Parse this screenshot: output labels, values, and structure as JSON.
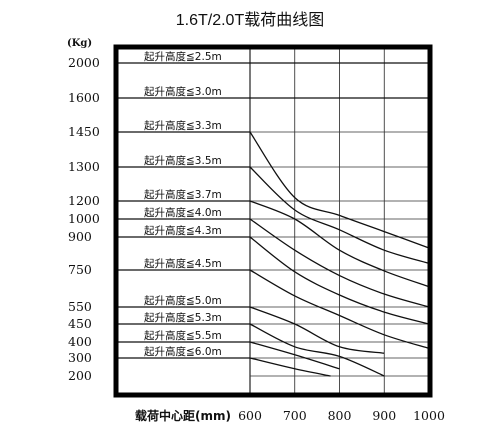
{
  "chart_data": {
    "type": "line",
    "title": "1.6T/2.0T载荷曲线图",
    "y_unit": "(Kg)",
    "xlabel": "载荷中心距(mm)",
    "x_ticks": [
      "600",
      "700",
      "800",
      "900",
      "1000"
    ],
    "y_ticks": [
      "2000",
      "1600",
      "1450",
      "1300",
      "1200",
      "1000",
      "900",
      "750",
      "550",
      "450",
      "400",
      "300",
      "200"
    ],
    "xlim": [
      500,
      1000
    ],
    "series": [
      {
        "name": "起升高度≦2.5m",
        "x": [
          500,
          600,
          1000
        ],
        "y": [
          2000,
          2000,
          2000
        ]
      },
      {
        "name": "起升高度≦3.0m",
        "x": [
          500,
          600,
          700,
          800,
          900,
          1000
        ],
        "y": [
          1600,
          1600,
          1600,
          1600,
          1600,
          1600
        ]
      },
      {
        "name": "起升高度≦3.3m",
        "x": [
          500,
          600,
          700,
          800,
          900,
          1000
        ],
        "y": [
          1450,
          1450,
          1210,
          1040,
          930,
          850
        ]
      },
      {
        "name": "起升高度≦3.5m",
        "x": [
          500,
          600,
          700,
          800,
          900,
          1000
        ],
        "y": [
          1300,
          1300,
          1100,
          940,
          840,
          780
        ]
      },
      {
        "name": "起升高度≦3.7m",
        "x": [
          500,
          600,
          700,
          800,
          900,
          1000
        ],
        "y": [
          1200,
          1200,
          1000,
          840,
          745,
          660
        ]
      },
      {
        "name": "起升高度≦4.0m",
        "x": [
          500,
          600,
          700,
          800,
          900,
          1000
        ],
        "y": [
          1000,
          1000,
          840,
          720,
          620,
          550
        ]
      },
      {
        "name": "起升高度≦4.3m",
        "x": [
          500,
          600,
          700,
          800,
          900,
          1000
        ],
        "y": [
          900,
          900,
          740,
          615,
          520,
          450
        ]
      },
      {
        "name": "起升高度≦4.5m",
        "x": [
          500,
          600,
          700,
          800,
          900,
          1000
        ],
        "y": [
          750,
          750,
          610,
          500,
          420,
          360
        ]
      },
      {
        "name": "起升高度≦5.0m",
        "x": [
          500,
          600,
          700,
          800,
          900
        ],
        "y": [
          550,
          550,
          450,
          370,
          330
        ]
      },
      {
        "name": "起升高度≦5.3m",
        "x": [
          500,
          600,
          700,
          800,
          900
        ],
        "y": [
          450,
          450,
          370,
          310,
          200
        ]
      },
      {
        "name": "起升高度≦5.5m",
        "x": [
          500,
          600,
          700,
          800
        ],
        "y": [
          400,
          400,
          320,
          240
        ]
      },
      {
        "name": "起升高度≦6.0m",
        "x": [
          500,
          600,
          700,
          780
        ],
        "y": [
          300,
          300,
          240,
          200
        ]
      }
    ]
  }
}
